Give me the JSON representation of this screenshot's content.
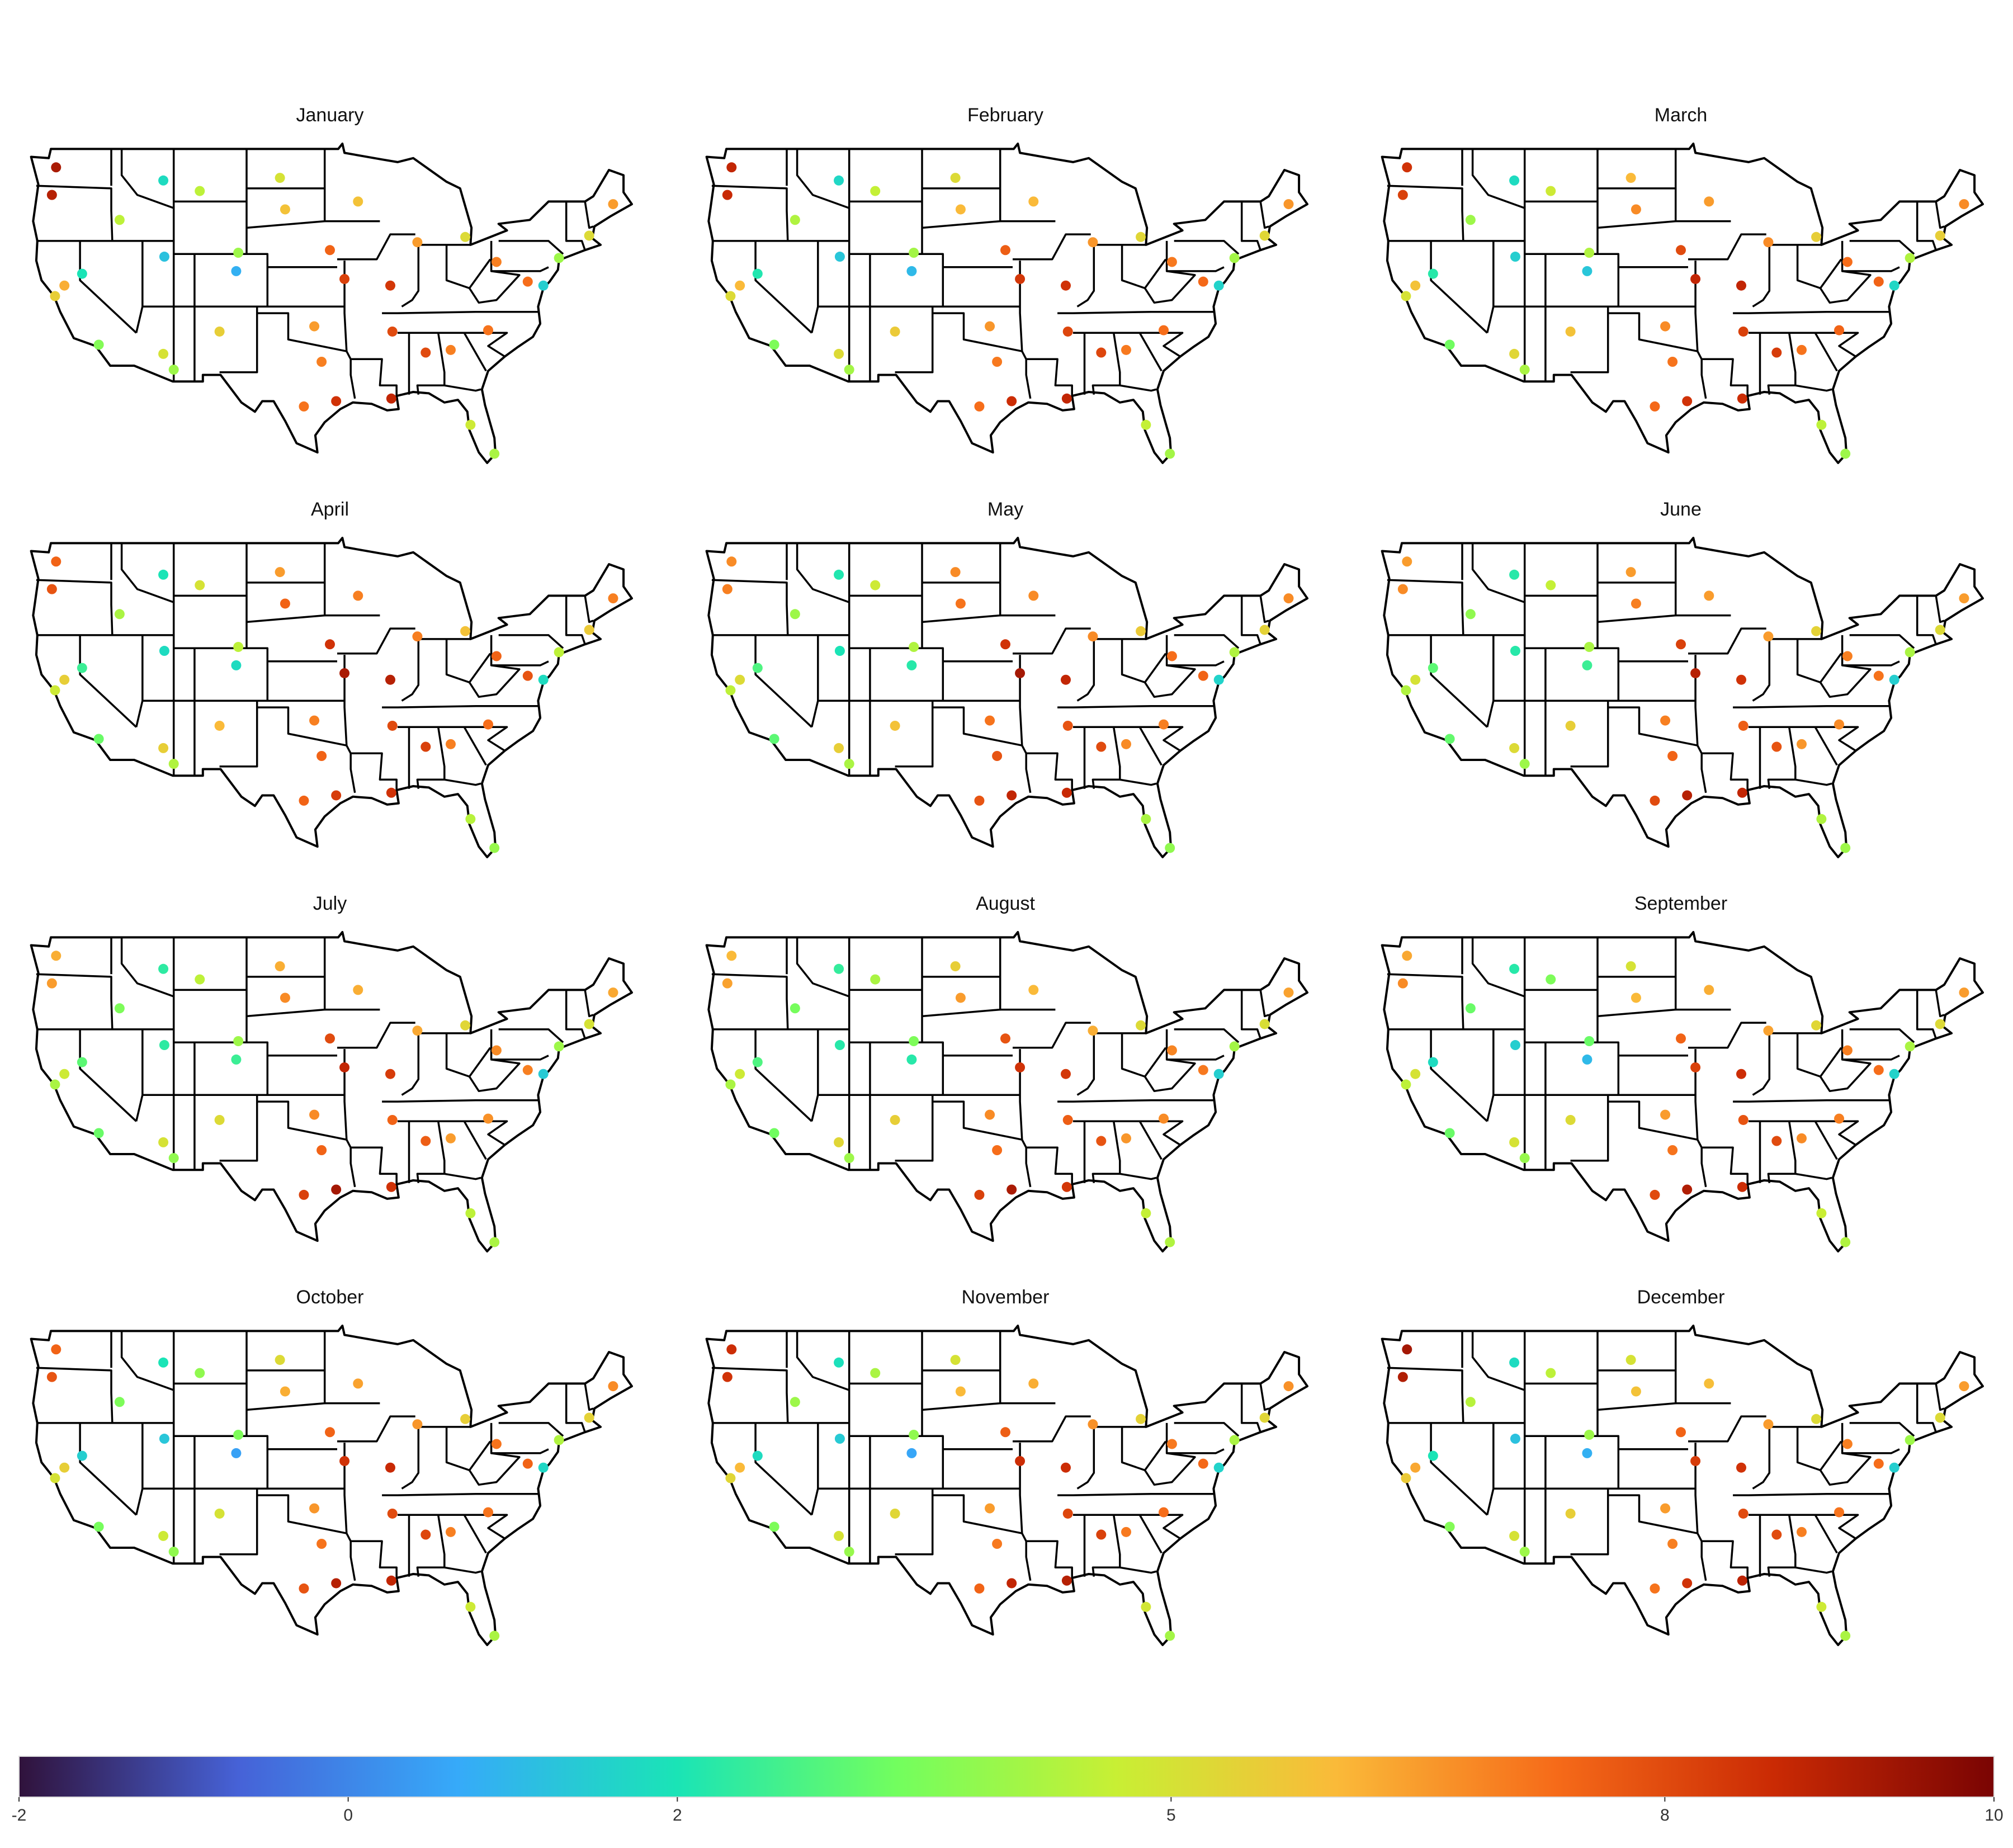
{
  "chart_data": {
    "type": "map",
    "panels": [
      "January",
      "February",
      "March",
      "April",
      "May",
      "June",
      "July",
      "August",
      "September",
      "October",
      "November",
      "December"
    ],
    "colormap": [
      "#30123b",
      "#4662d7",
      "#36aaf9",
      "#1ae4b6",
      "#72fe5e",
      "#c8ef34",
      "#faba39",
      "#f66b19",
      "#ca2a04",
      "#7a0403"
    ],
    "colorbar_lim": [
      -2,
      10
    ],
    "colorbar_ticks": [
      -2,
      0,
      2,
      5,
      8,
      10
    ],
    "stations": [
      {
        "lon": -122.3,
        "lat": 47.6,
        "values": [
          9.2,
          8.8,
          8.5,
          7.5,
          6.8,
          6.5,
          6.2,
          6,
          6.3,
          7.5,
          8.6,
          9.3
        ]
      },
      {
        "lon": -122.7,
        "lat": 45.5,
        "values": [
          9,
          8.7,
          8.2,
          7.8,
          7,
          6.8,
          6.5,
          6.4,
          6.8,
          7.8,
          8.5,
          9.1
        ]
      },
      {
        "lon": -122.4,
        "lat": 37.8,
        "values": [
          5.5,
          5.2,
          5,
          4.8,
          4.5,
          4.3,
          4.2,
          4.2,
          4.5,
          5,
          5.3,
          5.6
        ]
      },
      {
        "lon": -118.2,
        "lat": 34.1,
        "values": [
          3.6,
          3.5,
          3.3,
          3.2,
          3,
          3.1,
          3.2,
          3.3,
          3.2,
          3.4,
          3.5,
          3.6
        ]
      },
      {
        "lon": -121.5,
        "lat": 38.6,
        "values": [
          6.2,
          6,
          5.8,
          5.5,
          5.2,
          5,
          4.8,
          4.8,
          5,
          5.5,
          6,
          6.3
        ]
      },
      {
        "lon": -116.2,
        "lat": 43.6,
        "values": [
          4.5,
          4.3,
          4,
          4.2,
          4,
          3.8,
          3.5,
          3.4,
          3.2,
          3.5,
          4,
          4.4
        ]
      },
      {
        "lon": -111.9,
        "lat": 40.8,
        "values": [
          1.2,
          1.3,
          1.5,
          1.8,
          2,
          2.2,
          2.3,
          2.2,
          1.5,
          1.3,
          1.4,
          1.2
        ]
      },
      {
        "lon": -105.0,
        "lat": 39.7,
        "values": [
          0.8,
          1,
          1.3,
          1.8,
          2.2,
          2.5,
          2.5,
          2.2,
          1,
          0.5,
          0.6,
          0.8
        ]
      },
      {
        "lon": -119.8,
        "lat": 39.5,
        "values": [
          2,
          2.1,
          2.2,
          2.5,
          2.8,
          3,
          3,
          2.8,
          1.8,
          1.5,
          1.8,
          2
        ]
      },
      {
        "lon": -112.0,
        "lat": 33.4,
        "values": [
          5,
          5.2,
          5.3,
          5.5,
          5.5,
          5.2,
          5,
          5.3,
          5,
          4.8,
          5,
          5
        ]
      },
      {
        "lon": -106.6,
        "lat": 35.1,
        "values": [
          5.5,
          5.6,
          5.8,
          6,
          5.8,
          5.5,
          5.2,
          5.5,
          5.2,
          5,
          5.3,
          5.5
        ]
      },
      {
        "lon": -112.0,
        "lat": 46.6,
        "values": [
          1.8,
          1.7,
          1.8,
          2,
          2.1,
          2.2,
          2.3,
          2.4,
          2.2,
          2,
          1.9,
          1.8
        ]
      },
      {
        "lon": -100.8,
        "lat": 46.8,
        "values": [
          5,
          5.2,
          6,
          6.5,
          6.8,
          6.5,
          6.2,
          5.5,
          5,
          5.2,
          5,
          5
        ]
      },
      {
        "lon": -100.3,
        "lat": 44.4,
        "values": [
          5.8,
          6,
          6.8,
          7.5,
          7.2,
          7,
          6.8,
          6.5,
          6,
          6.2,
          6,
          5.8
        ]
      },
      {
        "lon": -96.0,
        "lat": 41.3,
        "values": [
          7.5,
          7.6,
          8,
          8.5,
          8.5,
          8.2,
          8,
          7.8,
          7.5,
          7.5,
          7.6,
          7.5
        ]
      },
      {
        "lon": -94.6,
        "lat": 39.1,
        "values": [
          8.2,
          8.4,
          8.8,
          9.2,
          9.3,
          9,
          8.8,
          8.5,
          8.2,
          8.5,
          8.6,
          8.3
        ]
      },
      {
        "lon": -97.5,
        "lat": 35.5,
        "values": [
          6.5,
          6.6,
          6.8,
          7,
          7.2,
          7,
          6.8,
          6.8,
          6.5,
          6.6,
          6.5,
          6.5
        ]
      },
      {
        "lon": -95.4,
        "lat": 29.8,
        "values": [
          8.5,
          8.6,
          8.5,
          8.3,
          8.8,
          9,
          9.3,
          9.2,
          9.1,
          9,
          8.8,
          8.5
        ]
      },
      {
        "lon": -98.5,
        "lat": 29.4,
        "values": [
          7.2,
          7.3,
          7.4,
          7.5,
          7.8,
          8,
          8.2,
          8.2,
          8,
          7.8,
          7.5,
          7.2
        ]
      },
      {
        "lon": -96.8,
        "lat": 32.8,
        "values": [
          7,
          7.1,
          7.2,
          7.5,
          7.8,
          7.5,
          7.5,
          7.3,
          7.2,
          7.2,
          7.1,
          7
        ]
      },
      {
        "lon": -90.1,
        "lat": 30.0,
        "values": [
          8.8,
          8.8,
          8.6,
          8.5,
          8.7,
          8.8,
          8.5,
          8.4,
          8.6,
          8.8,
          9,
          8.9
        ]
      },
      {
        "lon": -90.0,
        "lat": 35.1,
        "values": [
          8,
          8.1,
          8.2,
          8,
          7.8,
          7.6,
          7.5,
          7.6,
          7.8,
          8,
          8.1,
          8
        ]
      },
      {
        "lon": -90.2,
        "lat": 38.6,
        "values": [
          8.4,
          8.5,
          8.8,
          9,
          8.8,
          8.5,
          8.3,
          8.4,
          8.6,
          8.7,
          8.6,
          8.5
        ]
      },
      {
        "lon": -87.6,
        "lat": 41.9,
        "values": [
          6.5,
          6.6,
          6.8,
          7,
          6.8,
          6.5,
          6.3,
          6.2,
          6.4,
          6.6,
          6.7,
          6.5
        ]
      },
      {
        "lon": -93.3,
        "lat": 45.0,
        "values": [
          5.8,
          6,
          6.5,
          7,
          6.8,
          6.5,
          6.2,
          6,
          6.2,
          6.4,
          6.2,
          5.9
        ]
      },
      {
        "lon": -83.0,
        "lat": 42.3,
        "values": [
          5.2,
          5.3,
          5.5,
          5.8,
          5.6,
          5.4,
          5.3,
          5.2,
          5.3,
          5.5,
          5.4,
          5.2
        ]
      },
      {
        "lon": -84.4,
        "lat": 33.7,
        "values": [
          7,
          7.1,
          7.2,
          7,
          6.8,
          6.6,
          6.5,
          6.6,
          6.8,
          7,
          7.1,
          7
        ]
      },
      {
        "lon": -86.8,
        "lat": 33.5,
        "values": [
          8,
          8.1,
          8.3,
          8.2,
          8,
          7.8,
          7.6,
          7.8,
          8,
          8.1,
          8.2,
          8
        ]
      },
      {
        "lon": -80.8,
        "lat": 35.2,
        "values": [
          7.2,
          7.3,
          7.5,
          7.3,
          7,
          6.8,
          6.7,
          6.8,
          7,
          7.2,
          7.3,
          7.2
        ]
      },
      {
        "lon": -82.5,
        "lat": 28.0,
        "values": [
          4.8,
          4.6,
          4.5,
          4.4,
          4.2,
          4.3,
          4.5,
          4.6,
          4.7,
          4.8,
          4.9,
          4.8
        ]
      },
      {
        "lon": -80.2,
        "lat": 25.8,
        "values": [
          4.2,
          4.1,
          4,
          3.9,
          3.8,
          4,
          4.2,
          4.3,
          4.3,
          4.2,
          4.1,
          4.2
        ]
      },
      {
        "lon": -80.0,
        "lat": 40.4,
        "values": [
          7,
          7.1,
          7.3,
          7.5,
          7.3,
          7,
          6.8,
          6.9,
          7,
          7.2,
          7.1,
          7
        ]
      },
      {
        "lon": -77.0,
        "lat": 38.9,
        "values": [
          7.3,
          7.4,
          7.5,
          7.8,
          7.5,
          7.2,
          7,
          7.1,
          7.3,
          7.5,
          7.4,
          7.3
        ]
      },
      {
        "lon": -74.0,
        "lat": 40.7,
        "values": [
          4,
          4.1,
          4.3,
          4.5,
          4.3,
          4.2,
          4,
          4.1,
          4.2,
          4.3,
          4.2,
          4
        ]
      },
      {
        "lon": -71.1,
        "lat": 42.4,
        "values": [
          5.2,
          5.3,
          5.5,
          5.6,
          5.4,
          5.2,
          5,
          5.1,
          5.2,
          5.4,
          5.3,
          5.2
        ]
      },
      {
        "lon": -68.8,
        "lat": 44.8,
        "values": [
          6.5,
          6.6,
          6.8,
          7,
          6.8,
          6.5,
          6.3,
          6.4,
          6.5,
          6.8,
          6.7,
          6.5
        ]
      },
      {
        "lon": -75.5,
        "lat": 38.6,
        "values": [
          1.5,
          1.6,
          1.7,
          1.8,
          1.6,
          1.5,
          1.4,
          1.5,
          1.6,
          1.7,
          1.6,
          1.5
        ]
      },
      {
        "lon": -104.8,
        "lat": 41.1,
        "values": [
          4,
          4.1,
          4.3,
          4.5,
          4.3,
          4.2,
          4,
          3.5,
          3.2,
          3.5,
          3.8,
          4
        ]
      },
      {
        "lon": -108.5,
        "lat": 45.8,
        "values": [
          4.5,
          4.6,
          4.8,
          5,
          4.8,
          4.6,
          4.5,
          4.2,
          3.5,
          3.8,
          4.2,
          4.5
        ]
      },
      {
        "lon": -111.0,
        "lat": 32.2,
        "values": [
          4,
          4.1,
          4.2,
          4.3,
          4.2,
          4,
          3.8,
          4,
          3.9,
          3.8,
          3.9,
          4
        ]
      }
    ]
  }
}
